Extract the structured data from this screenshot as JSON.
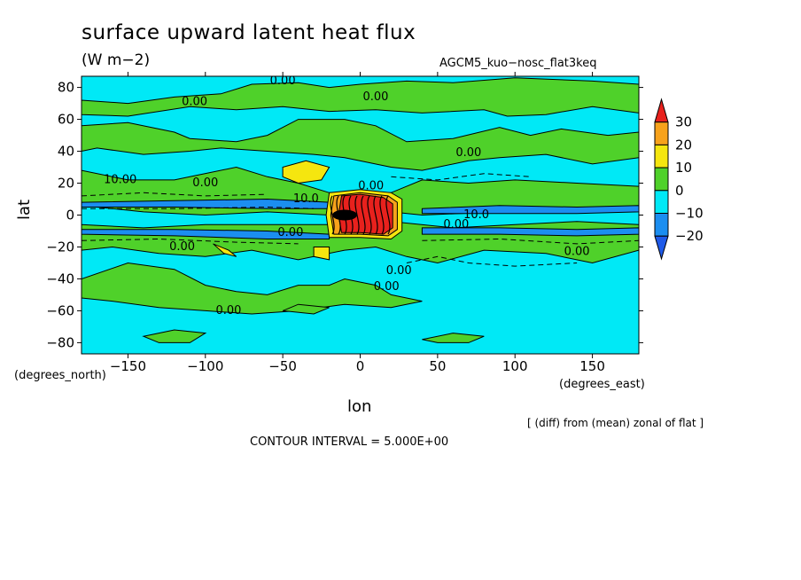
{
  "chart_data": {
    "type": "heatmap",
    "title": "surface upward latent heat flux",
    "units": "(W m−2)",
    "run_name": "AGCM5_kuo−nosc_flat3keq",
    "xlabel": "lon",
    "ylabel": "lat",
    "x_units_label": "(degrees_east)",
    "y_units_label": "(degrees_north)",
    "xlim": [
      -180,
      180
    ],
    "ylim": [
      -87,
      87
    ],
    "x_ticks": [
      -150,
      -100,
      -50,
      0,
      50,
      100,
      150
    ],
    "x_tick_labels": [
      "−150",
      "−100",
      "−50",
      "0",
      "50",
      "100",
      "150"
    ],
    "y_ticks": [
      80,
      60,
      40,
      20,
      0,
      -20,
      -40,
      -60,
      -80
    ],
    "y_tick_labels": [
      "80",
      "60",
      "40",
      "20",
      "0",
      "−20",
      "−40",
      "−60",
      "−80"
    ],
    "colorbar": {
      "levels": [
        30,
        20,
        10,
        0,
        -10,
        -20
      ],
      "level_labels": [
        "30",
        "20",
        "10",
        "0",
        "−10",
        "−20"
      ],
      "colors": [
        "#e8211d",
        "#f7a21b",
        "#f5e60f",
        "#4fd12a",
        "#00e9f6",
        "#1b8ef0",
        "#1f5ae8"
      ]
    },
    "contour_labels": [
      {
        "text": "0.00",
        "lon": -50,
        "lat": 82
      },
      {
        "text": "0.00",
        "lon": -107,
        "lat": 69
      },
      {
        "text": "0.00",
        "lon": 10,
        "lat": 72
      },
      {
        "text": "0.00",
        "lon": 70,
        "lat": 37
      },
      {
        "text": "10.00",
        "lon": -155,
        "lat": 20
      },
      {
        "text": "0.00",
        "lon": -100,
        "lat": 18
      },
      {
        "text": "10.0",
        "lon": -35,
        "lat": 8
      },
      {
        "text": "0.00",
        "lon": 7,
        "lat": 16
      },
      {
        "text": "10.0",
        "lon": 75,
        "lat": -2
      },
      {
        "text": "0.00",
        "lon": 62,
        "lat": -8
      },
      {
        "text": "0.00",
        "lon": -45,
        "lat": -13
      },
      {
        "text": "0.00",
        "lon": -115,
        "lat": -22
      },
      {
        "text": "0.00",
        "lon": 25,
        "lat": -37
      },
      {
        "text": "0.00",
        "lon": 140,
        "lat": -25
      },
      {
        "text": "0.00",
        "lon": 17,
        "lat": -47
      },
      {
        "text": "0.00",
        "lon": -85,
        "lat": -62
      }
    ],
    "grid": false
  },
  "footer": {
    "note": "[ (diff) from (mean) zonal of flat ]",
    "contour_interval": "CONTOUR INTERVAL = 5.000E+00"
  }
}
